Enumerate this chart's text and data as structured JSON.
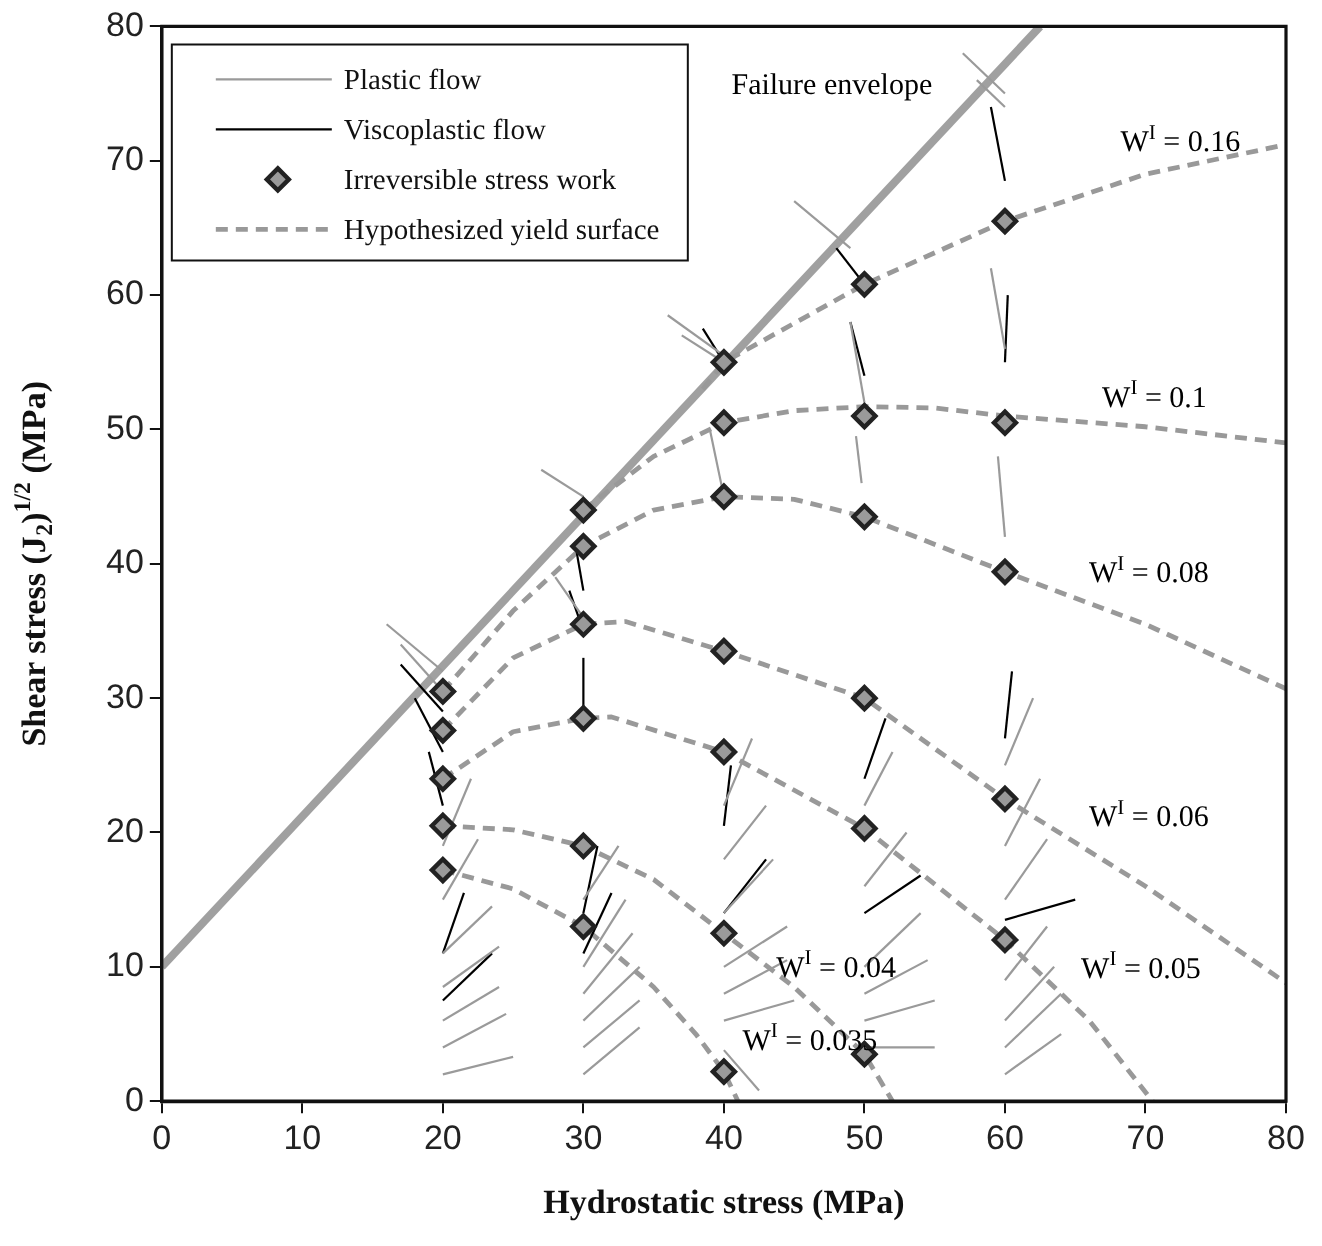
{
  "chart_data": {
    "type": "line",
    "xlabel": "Hydrostatic stress (MPa)",
    "ylabel": "Shear stress (J$_{2}$)$^{1/2}$ (MPa)",
    "xlim": [
      0,
      80
    ],
    "xticks": [
      0,
      10,
      20,
      30,
      40,
      50,
      60,
      70,
      80
    ],
    "ylim": [
      0,
      80
    ],
    "yticks": [
      0,
      10,
      20,
      30,
      40,
      50,
      60,
      70,
      80
    ],
    "grid": false,
    "legend": "top left",
    "series": [
      {
        "name": "Plastic flow",
        "color": "#9a9a9a",
        "x": [
          20,
          25
        ],
        "values": [
          2,
          3.3
        ]
      },
      {
        "color": "#9a9a9a",
        "x": [
          20,
          24.5
        ],
        "values": [
          4,
          6.5
        ]
      },
      {
        "color": "#9a9a9a",
        "x": [
          20,
          24
        ],
        "values": [
          6,
          8.5
        ]
      },
      {
        "color": "#9a9a9a",
        "x": [
          20,
          24
        ],
        "values": [
          8.5,
          11.5
        ]
      },
      {
        "color": "#9a9a9a",
        "x": [
          20,
          23.5
        ],
        "values": [
          11,
          14.5
        ]
      },
      {
        "color": "#9a9a9a",
        "x": [
          20,
          22.5
        ],
        "values": [
          15,
          19.5
        ]
      },
      {
        "color": "#9a9a9a",
        "x": [
          20,
          22
        ],
        "values": [
          19,
          24
        ]
      },
      {
        "color": "#9a9a9a",
        "x": [
          16,
          20
        ],
        "values": [
          35.5,
          32
        ]
      },
      {
        "color": "#9a9a9a",
        "x": [
          17,
          20
        ],
        "values": [
          34,
          30.5
        ]
      },
      {
        "color": "#9a9a9a",
        "x": [
          30,
          34
        ],
        "values": [
          2,
          5.5
        ]
      },
      {
        "color": "#9a9a9a",
        "x": [
          30,
          34
        ],
        "values": [
          4,
          7.5
        ]
      },
      {
        "color": "#9a9a9a",
        "x": [
          30,
          34
        ],
        "values": [
          6,
          10
        ]
      },
      {
        "color": "#9a9a9a",
        "x": [
          30,
          33.5
        ],
        "values": [
          8,
          12.5
        ]
      },
      {
        "color": "#9a9a9a",
        "x": [
          30,
          33
        ],
        "values": [
          10,
          15
        ]
      },
      {
        "color": "#9a9a9a",
        "x": [
          30,
          32.5
        ],
        "values": [
          15,
          19
        ]
      },
      {
        "color": "#9a9a9a",
        "x": [
          27,
          30
        ],
        "values": [
          47,
          45
        ]
      },
      {
        "color": "#9a9a9a",
        "x": [
          28,
          30
        ],
        "values": [
          39,
          36
        ]
      },
      {
        "color": "#9a9a9a",
        "x": [
          40,
          42.5
        ],
        "values": [
          3.8,
          0.8
        ]
      },
      {
        "color": "#9a9a9a",
        "x": [
          40,
          45
        ],
        "values": [
          6,
          7.5
        ]
      },
      {
        "color": "#9a9a9a",
        "x": [
          40,
          44.5
        ],
        "values": [
          8,
          10.5
        ]
      },
      {
        "color": "#9a9a9a",
        "x": [
          40,
          44.5
        ],
        "values": [
          10,
          13
        ]
      },
      {
        "color": "#9a9a9a",
        "x": [
          40,
          43.5
        ],
        "values": [
          14,
          18
        ]
      },
      {
        "color": "#9a9a9a",
        "x": [
          40,
          43
        ],
        "values": [
          18,
          22
        ]
      },
      {
        "color": "#9a9a9a",
        "x": [
          40,
          42
        ],
        "values": [
          22,
          27
        ]
      },
      {
        "color": "#9a9a9a",
        "x": [
          36,
          40
        ],
        "values": [
          58.5,
          55.5
        ]
      },
      {
        "color": "#9a9a9a",
        "x": [
          37,
          40
        ],
        "values": [
          57,
          55
        ]
      },
      {
        "color": "#9a9a9a",
        "x": [
          39,
          40
        ],
        "values": [
          50,
          45
        ]
      },
      {
        "color": "#9a9a9a",
        "x": [
          50,
          55
        ],
        "values": [
          4,
          4
        ]
      },
      {
        "color": "#9a9a9a",
        "x": [
          50,
          55
        ],
        "values": [
          6,
          7.5
        ]
      },
      {
        "color": "#9a9a9a",
        "x": [
          50,
          54.5
        ],
        "values": [
          8,
          10.5
        ]
      },
      {
        "color": "#9a9a9a",
        "x": [
          50,
          54
        ],
        "values": [
          10,
          14
        ]
      },
      {
        "color": "#9a9a9a",
        "x": [
          50,
          53
        ],
        "values": [
          16,
          20
        ]
      },
      {
        "color": "#9a9a9a",
        "x": [
          50,
          52
        ],
        "values": [
          22,
          26
        ]
      },
      {
        "color": "#9a9a9a",
        "x": [
          45,
          49
        ],
        "values": [
          67,
          63.5
        ]
      },
      {
        "color": "#9a9a9a",
        "x": [
          49,
          50
        ],
        "values": [
          58,
          52
        ]
      },
      {
        "color": "#9a9a9a",
        "x": [
          49.4,
          49.8
        ],
        "values": [
          49.5,
          46
        ]
      },
      {
        "color": "#9a9a9a",
        "x": [
          60,
          64
        ],
        "values": [
          2,
          5
        ]
      },
      {
        "color": "#9a9a9a",
        "x": [
          60,
          64
        ],
        "values": [
          4,
          8
        ]
      },
      {
        "color": "#9a9a9a",
        "x": [
          60,
          63.5
        ],
        "values": [
          6,
          10
        ]
      },
      {
        "color": "#9a9a9a",
        "x": [
          60,
          63
        ],
        "values": [
          9,
          13
        ]
      },
      {
        "color": "#9a9a9a",
        "x": [
          60,
          63
        ],
        "values": [
          15,
          19.5
        ]
      },
      {
        "color": "#9a9a9a",
        "x": [
          60,
          62.5
        ],
        "values": [
          19,
          24
        ]
      },
      {
        "color": "#9a9a9a",
        "x": [
          60,
          62
        ],
        "values": [
          25,
          30
        ]
      },
      {
        "color": "#9a9a9a",
        "x": [
          57,
          60
        ],
        "values": [
          78,
          75
        ]
      },
      {
        "color": "#9a9a9a",
        "x": [
          58,
          60
        ],
        "values": [
          76,
          74
        ]
      },
      {
        "color": "#9a9a9a",
        "x": [
          59,
          60
        ],
        "values": [
          62,
          56
        ]
      },
      {
        "color": "#9a9a9a",
        "x": [
          59.5,
          60
        ],
        "values": [
          48,
          42
        ]
      },
      {
        "name": "Viscoplastic flow",
        "color": "#000000",
        "x": [
          20,
          23.5
        ],
        "values": [
          7.5,
          11
        ]
      },
      {
        "color": "#000000",
        "x": [
          20,
          21.5
        ],
        "values": [
          11,
          15.5
        ]
      },
      {
        "color": "#000000",
        "x": [
          17,
          20
        ],
        "values": [
          32.5,
          29
        ]
      },
      {
        "color": "#000000",
        "x": [
          18,
          20
        ],
        "values": [
          30,
          26
        ]
      },
      {
        "color": "#000000",
        "x": [
          19,
          20
        ],
        "values": [
          26,
          22
        ]
      },
      {
        "color": "#000000",
        "x": [
          30,
          32
        ],
        "values": [
          11,
          15.5
        ]
      },
      {
        "color": "#000000",
        "x": [
          30,
          31
        ],
        "values": [
          14,
          19
        ]
      },
      {
        "color": "#000000",
        "x": [
          29,
          30
        ],
        "values": [
          38,
          35
        ]
      },
      {
        "color": "#000000",
        "x": [
          30,
          30
        ],
        "values": [
          28.5,
          33
        ]
      },
      {
        "color": "#000000",
        "x": [
          29.5,
          30
        ],
        "values": [
          41,
          38
        ]
      },
      {
        "color": "#000000",
        "x": [
          40,
          43
        ],
        "values": [
          14,
          18
        ]
      },
      {
        "color": "#000000",
        "x": [
          40,
          40.5
        ],
        "values": [
          20.5,
          25
        ]
      },
      {
        "color": "#000000",
        "x": [
          38.5,
          40
        ],
        "values": [
          57.5,
          55
        ]
      },
      {
        "color": "#000000",
        "x": [
          50,
          54
        ],
        "values": [
          14,
          16.8
        ]
      },
      {
        "color": "#000000",
        "x": [
          50,
          51.5
        ],
        "values": [
          24,
          28.5
        ]
      },
      {
        "color": "#000000",
        "x": [
          48,
          50
        ],
        "values": [
          63.5,
          60.8
        ]
      },
      {
        "color": "#000000",
        "x": [
          49,
          50
        ],
        "values": [
          58,
          54
        ]
      },
      {
        "color": "#000000",
        "x": [
          60,
          65
        ],
        "values": [
          13.5,
          15
        ]
      },
      {
        "color": "#000000",
        "x": [
          60,
          60.5
        ],
        "values": [
          27,
          32
        ]
      },
      {
        "color": "#000000",
        "x": [
          59,
          60
        ],
        "values": [
          74,
          68.5
        ]
      },
      {
        "color": "#000000",
        "x": [
          60,
          60.2
        ],
        "values": [
          55,
          60
        ]
      },
      {
        "name": "Irreversible stress work",
        "type": "scatter",
        "marker": "diamond",
        "color": "#9a9a9a",
        "x": [
          20,
          20,
          20,
          20,
          20,
          30,
          30,
          30,
          30,
          30,
          30,
          40,
          40,
          40,
          40,
          40,
          40,
          40,
          50,
          50,
          50,
          50,
          50,
          50,
          60,
          60,
          60,
          60,
          60
        ],
        "values": [
          30.5,
          27.6,
          24,
          20.5,
          17.2,
          44,
          41.3,
          35.5,
          28.5,
          19,
          13,
          55,
          50.5,
          45,
          33.5,
          26,
          12.5,
          2.2,
          60.8,
          51,
          43.5,
          30,
          20.3,
          3.5,
          65.5,
          50.5,
          39.4,
          22.5,
          12
        ]
      },
      {
        "name": "Hypothesized yield surface",
        "color": "#999999",
        "line_style": "dashed",
        "x": [
          38.5,
          40,
          50,
          60,
          70,
          80
        ],
        "values": [
          53,
          55,
          60.8,
          65.5,
          69,
          71.2
        ]
      },
      {
        "color": "#999999",
        "line_style": "dashed",
        "x": [
          30,
          35,
          40,
          45,
          50,
          55,
          60,
          70,
          80
        ],
        "values": [
          44,
          48,
          50.5,
          51.4,
          51.7,
          51.6,
          51,
          50.2,
          49
        ]
      },
      {
        "color": "#999999",
        "line_style": "dashed",
        "x": [
          20,
          25,
          30,
          35,
          40,
          45,
          50,
          60,
          70,
          80
        ],
        "values": [
          30.5,
          36.5,
          41.3,
          44,
          45,
          44.8,
          43.5,
          39.4,
          35.5,
          30.7
        ]
      },
      {
        "color": "#999999",
        "line_style": "dashed",
        "x": [
          20,
          25,
          30,
          33,
          40,
          50,
          60,
          70,
          80
        ],
        "values": [
          27.6,
          33,
          35.5,
          35.7,
          33.5,
          30,
          22.5,
          16,
          8.8
        ]
      },
      {
        "color": "#999999",
        "line_style": "dashed",
        "x": [
          20,
          25,
          30,
          32,
          40,
          50,
          60,
          66,
          70.5
        ],
        "values": [
          24,
          27.5,
          28.5,
          28.6,
          26,
          20.3,
          12,
          6,
          0
        ]
      },
      {
        "color": "#999999",
        "line_style": "dashed",
        "x": [
          20,
          25,
          30,
          35,
          40,
          45,
          50,
          52
        ],
        "values": [
          20.5,
          20.2,
          19,
          16.5,
          12.5,
          8.5,
          3.5,
          0
        ]
      },
      {
        "color": "#999999",
        "line_style": "dashed",
        "x": [
          20,
          25,
          30,
          35,
          38,
          40,
          41
        ],
        "values": [
          17.2,
          15.8,
          13,
          8.5,
          5,
          2.2,
          0
        ]
      },
      {
        "color": "#a0a0a0",
        "x": [
          0,
          62.5
        ],
        "values": [
          10,
          80
        ]
      }
    ],
    "annotations": [
      "Failure envelope",
      "W$^{I}$ = 0.16",
      "W$^{I}$ = 0.1",
      "W$^{I}$ = 0.08",
      "W$^{I}$ = 0.06",
      "W$^{I}$ = 0.05",
      {
        "text": "W$^{I}$ = 0.04",
        "x": 45,
        "y": 8.5
      },
      {
        "text": "W$^{I}$ = 0.035",
        "x": 38,
        "y": 5
      }
    ]
  }
}
